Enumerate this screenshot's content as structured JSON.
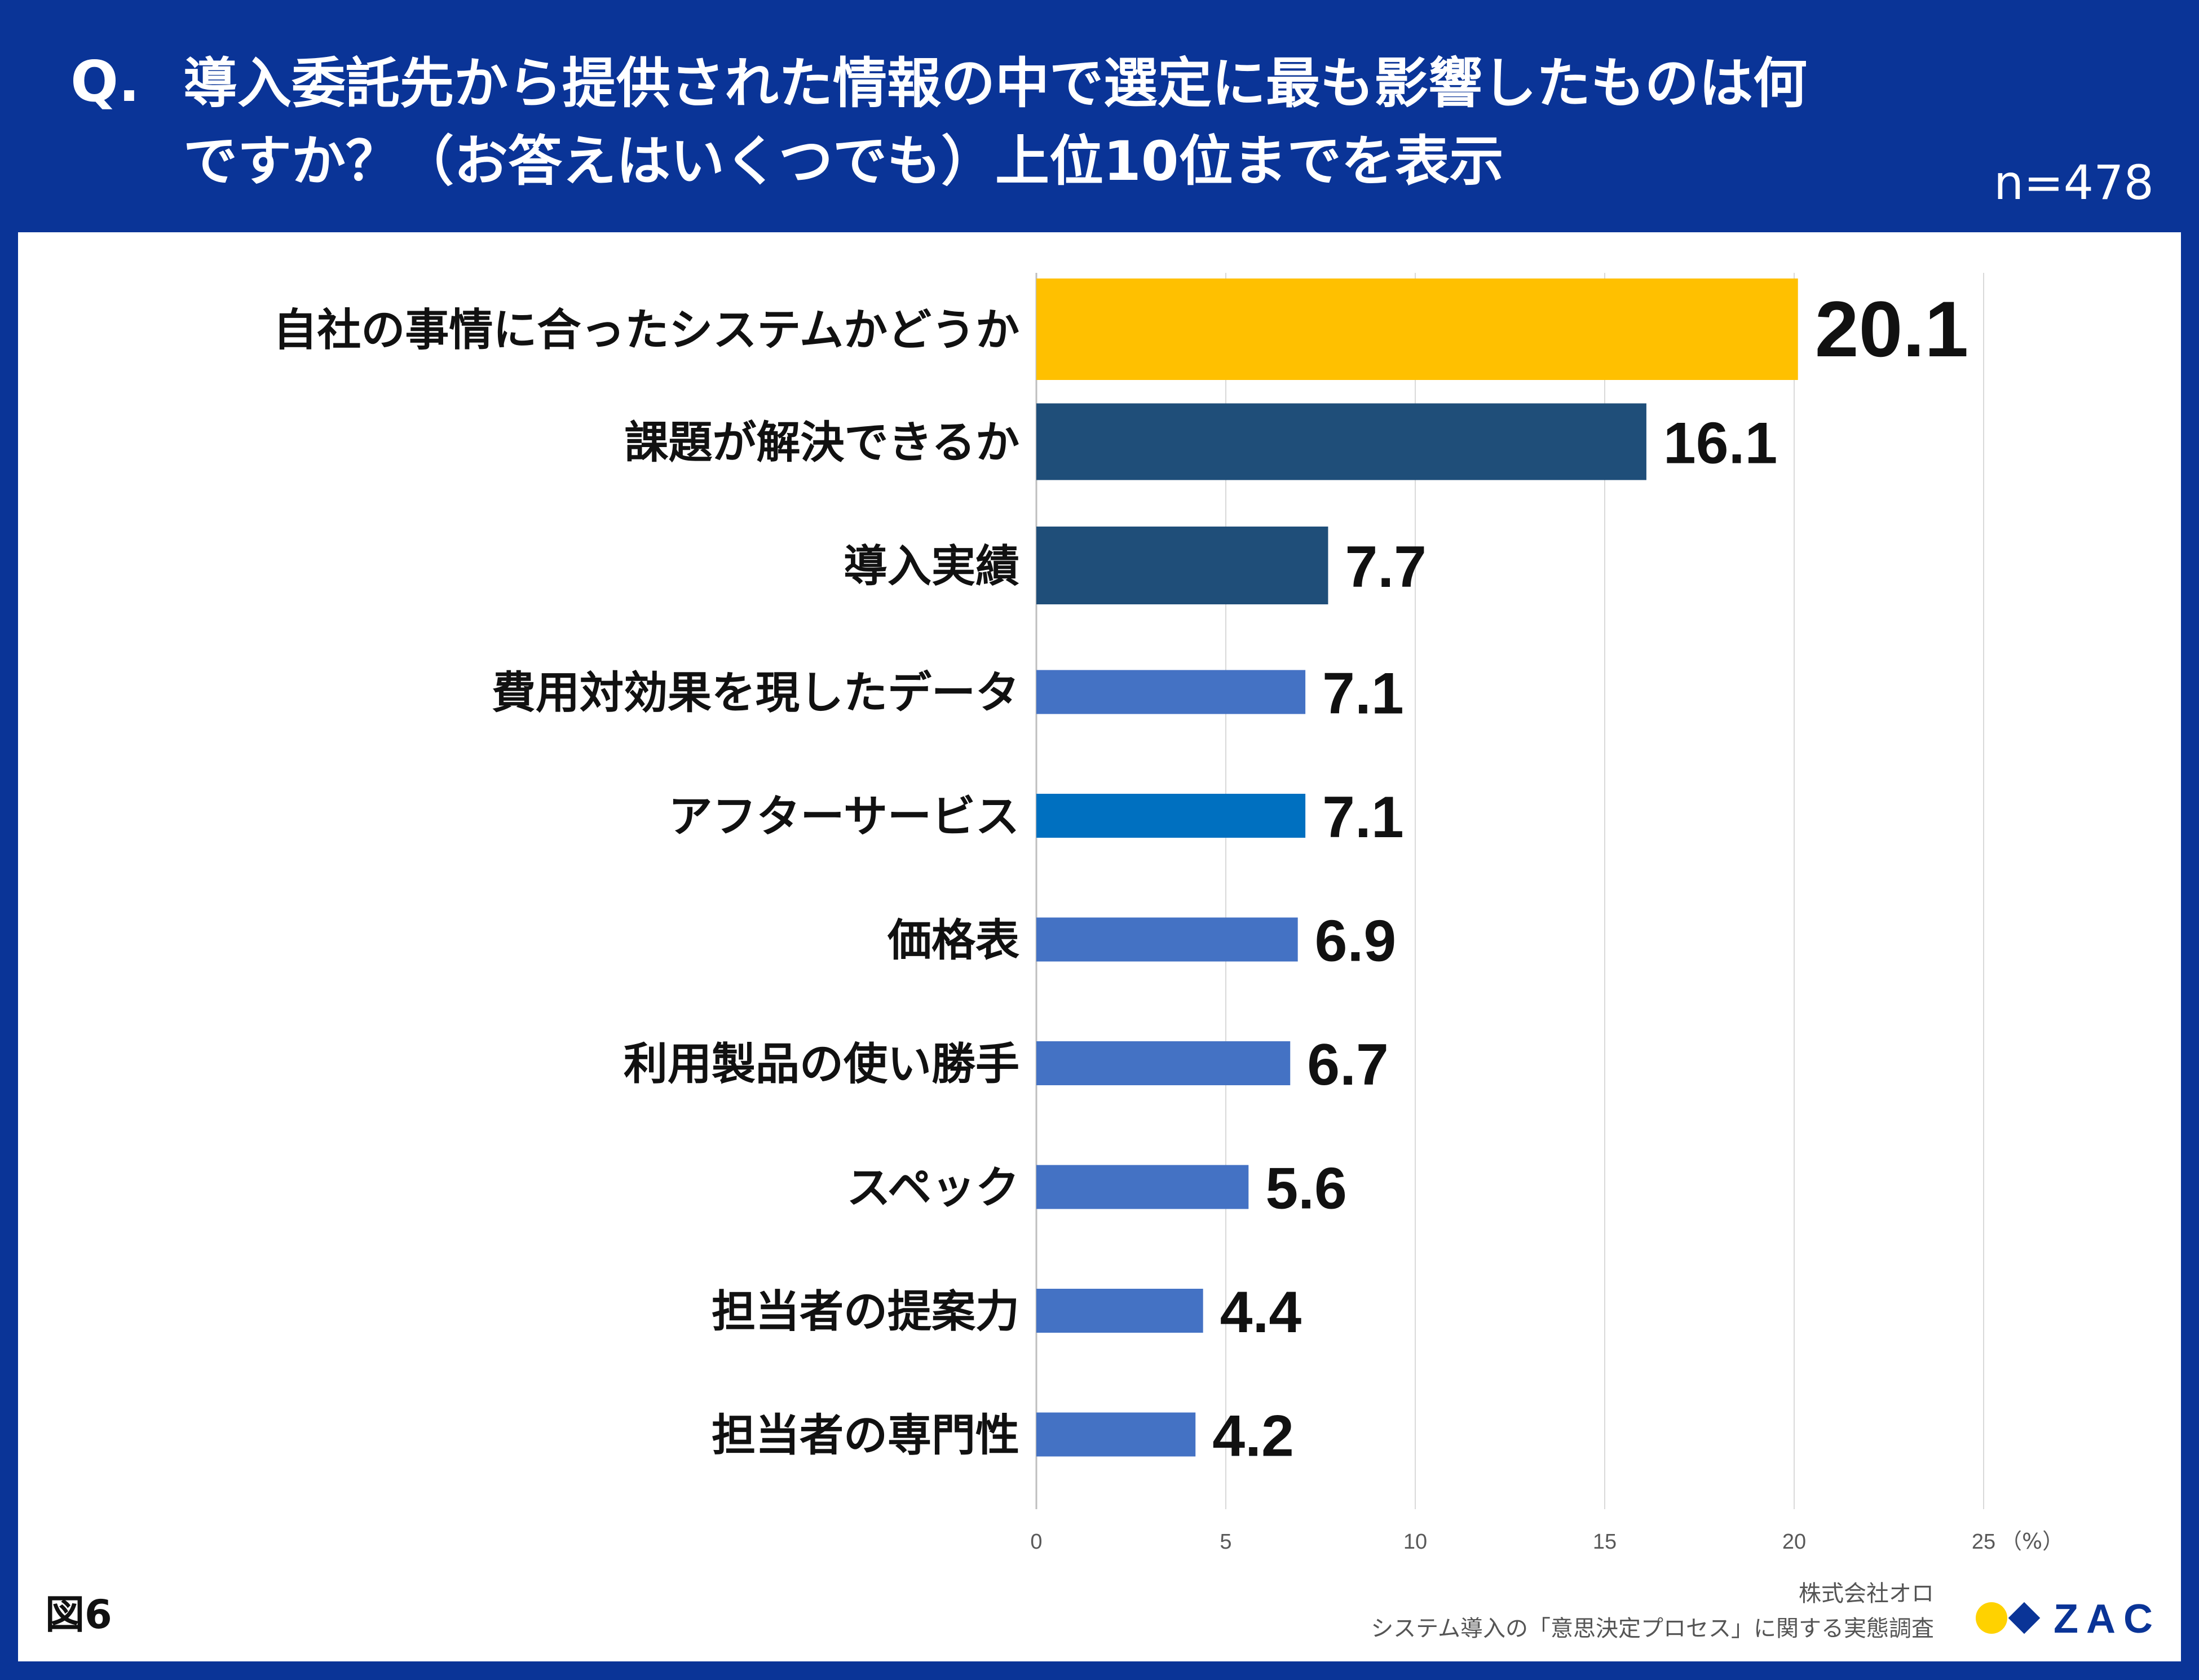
{
  "header": {
    "q_mark": "Q.",
    "question_line1": "導入委託先から提供された情報の中で選定に最も影響したものは何",
    "question_line2": "ですか？（お答えはいくつでも）上位10位までを表示",
    "sample_size": "n=478"
  },
  "chart_data": {
    "type": "bar",
    "orientation": "horizontal",
    "title": "導入委託先から提供された情報の中で選定に最も影響したものは何ですか？（お答えはいくつでも）上位10位までを表示",
    "categories": [
      "自社の事情に合ったシステムかどうか",
      "課題が解決できるか",
      "導入実績",
      "費用対効果を現したデータ",
      "アフターサービス",
      "価格表",
      "利用製品の使い勝手",
      "スペック",
      "担当者の提案力",
      "担当者の専門性"
    ],
    "values": [
      20.1,
      16.1,
      7.7,
      7.1,
      7.1,
      6.9,
      6.7,
      5.6,
      4.4,
      4.2
    ],
    "value_labels": [
      "20.1",
      "16.1",
      "7.7",
      "7.1",
      "7.1",
      "6.9",
      "6.7",
      "5.6",
      "4.4",
      "4.2"
    ],
    "bar_colors": [
      "#ffc000",
      "#1f4e79",
      "#1f4e79",
      "#4472c4",
      "#0070c0",
      "#4472c4",
      "#4472c4",
      "#4472c4",
      "#4472c4",
      "#4472c4"
    ],
    "x_ticks": [
      0,
      5,
      10,
      15,
      20,
      25
    ],
    "x_tick_labels": [
      "0",
      "5",
      "10",
      "15",
      "20",
      "25"
    ],
    "xlim": [
      0,
      25
    ],
    "xlabel": "（%）",
    "grid": true
  },
  "footer": {
    "figure_label": "図6",
    "company": "株式会社オロ",
    "survey": "システム導入の「意思決定プロセス」に関する実態調査",
    "logo_text": "ZAC"
  },
  "colors": {
    "header_bg": "#0a3497",
    "logo_yellow": "#ffd200",
    "logo_blue": "#0a3497"
  }
}
